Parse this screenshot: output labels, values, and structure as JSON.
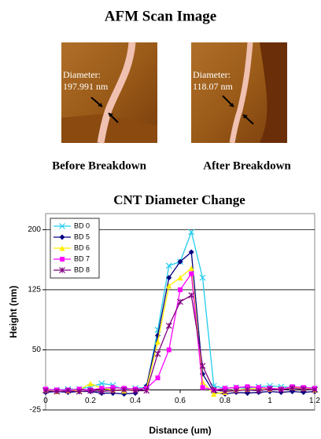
{
  "figure": {
    "title": "AFM Scan Image",
    "panels": [
      {
        "annotation": [
          "Diameter:",
          "197.991 nm"
        ],
        "caption": "Before Breakdown"
      },
      {
        "annotation": [
          "Diameter:",
          "118.07 nm"
        ],
        "caption": "After Breakdown"
      }
    ]
  },
  "chart_data": {
    "type": "line",
    "title": "CNT Diameter Change",
    "x_label": "Distance (um)",
    "y_label": "Height (nm)",
    "x": [
      0,
      0.05,
      0.1,
      0.15,
      0.2,
      0.25,
      0.3,
      0.35,
      0.4,
      0.45,
      0.5,
      0.55,
      0.6,
      0.65,
      0.7,
      0.75,
      0.8,
      0.85,
      0.9,
      0.95,
      1,
      1.05,
      1.1,
      1.15,
      1.2
    ],
    "series": [
      {
        "name": "BD 0",
        "color": "#22ccee",
        "marker": "x",
        "values": [
          0,
          0,
          1,
          1,
          4,
          8,
          6,
          0,
          2,
          3,
          75,
          155,
          160,
          197,
          140,
          5,
          2,
          3,
          2,
          4,
          5,
          4,
          3,
          2,
          1
        ]
      },
      {
        "name": "BD 5",
        "color": "#000080",
        "marker": "diamond",
        "values": [
          -3,
          -2,
          -3,
          -2,
          -2,
          -4,
          -4,
          -5,
          -4,
          5,
          68,
          140,
          160,
          172,
          20,
          -3,
          -5,
          -3,
          -4,
          -3,
          -2,
          -3,
          -2,
          -3,
          -2
        ]
      },
      {
        "name": "BD 6",
        "color": "#ffee00",
        "marker": "triangle",
        "values": [
          0,
          -2,
          -1,
          0,
          8,
          2,
          0,
          -1,
          1,
          2,
          60,
          130,
          140,
          152,
          10,
          -5,
          -3,
          0,
          1,
          2,
          1,
          2,
          3,
          2,
          0
        ]
      },
      {
        "name": "BD 7",
        "color": "#ff00ff",
        "marker": "square",
        "values": [
          1,
          0,
          0,
          1,
          0,
          2,
          3,
          2,
          1,
          2,
          15,
          50,
          125,
          145,
          3,
          0,
          2,
          3,
          4,
          3,
          2,
          1,
          4,
          3,
          2
        ]
      },
      {
        "name": "BD 8",
        "color": "#800080",
        "marker": "star",
        "values": [
          -1,
          -2,
          -1,
          -2,
          -1,
          -2,
          -1,
          0,
          -1,
          -1,
          45,
          80,
          110,
          118,
          30,
          0,
          -2,
          -1,
          0,
          -1,
          1,
          0,
          2,
          1,
          0
        ]
      }
    ],
    "xlim": [
      0,
      1.2
    ],
    "xticks": [
      0,
      0.2,
      0.4,
      0.6,
      0.8,
      1,
      1.2
    ],
    "ylim": [
      -25,
      220
    ],
    "yticks": [
      -25,
      50,
      125,
      200
    ],
    "grid": true,
    "legend": "upper left"
  }
}
